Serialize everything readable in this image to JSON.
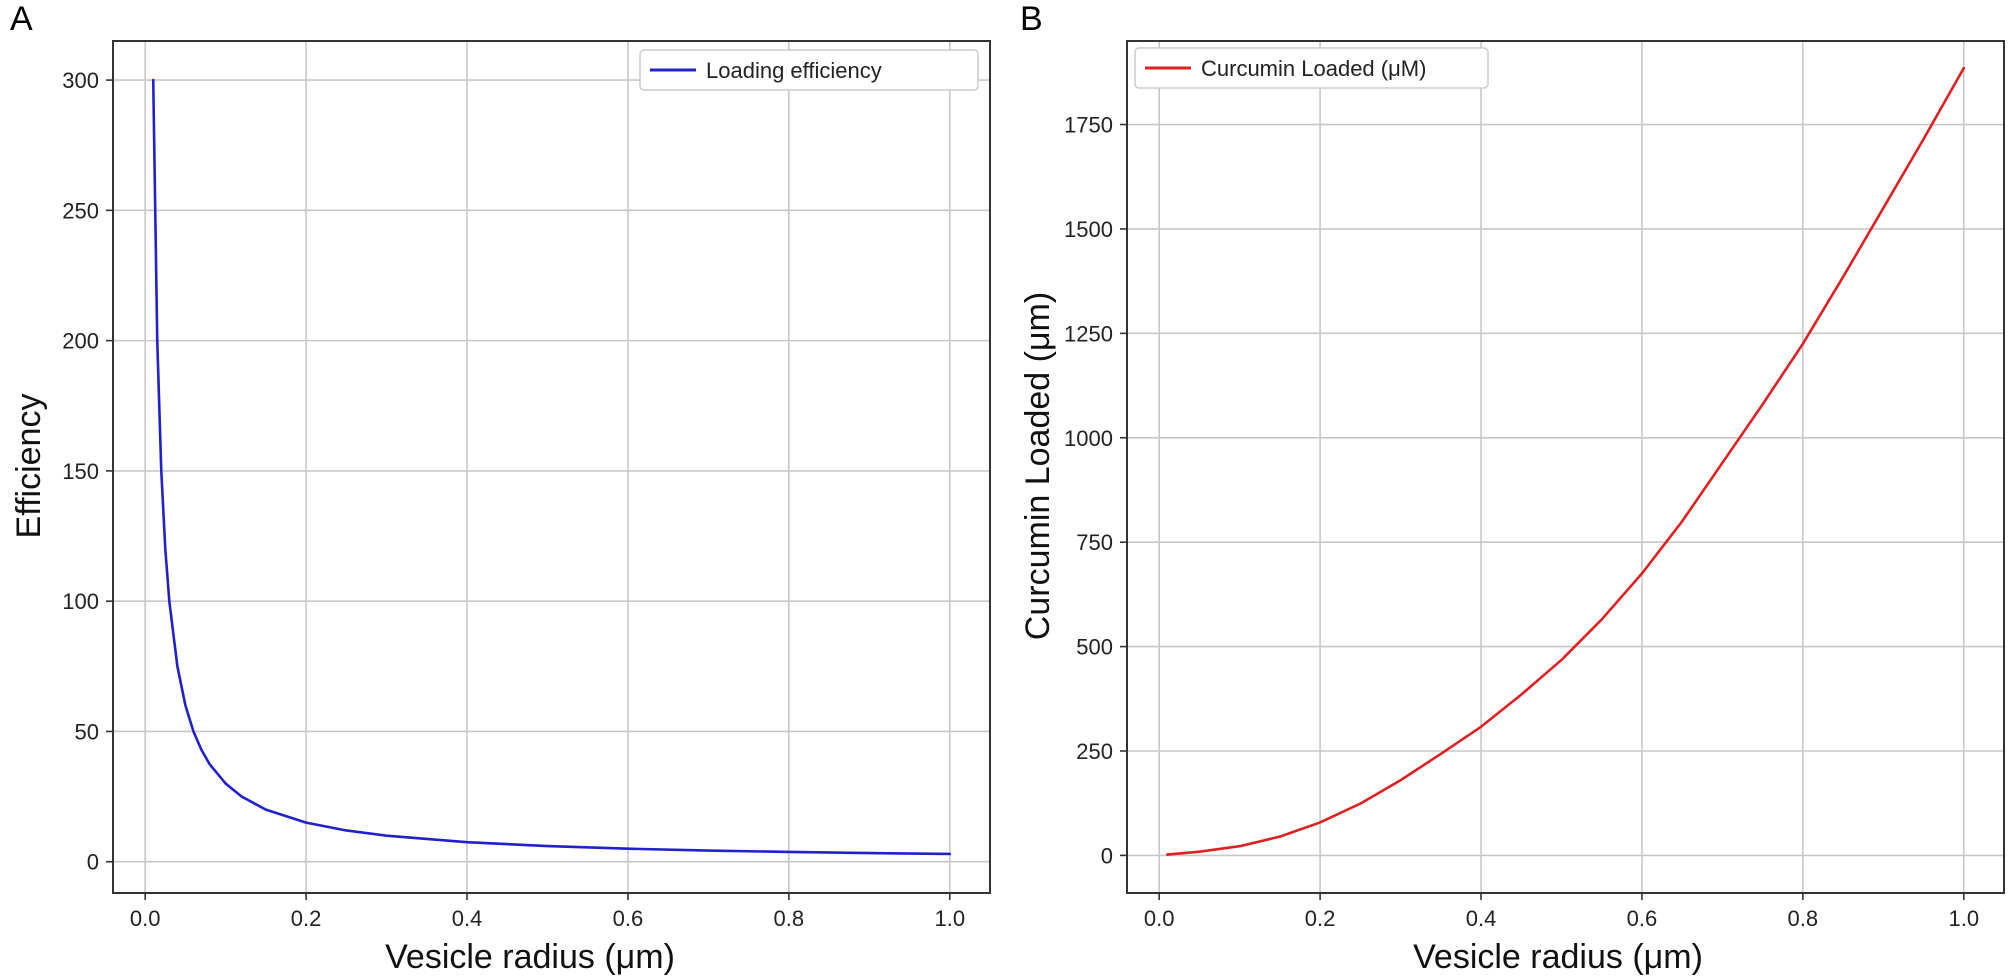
{
  "chart_data": [
    {
      "panel": "A",
      "type": "line",
      "title": "",
      "xlabel": "Vesicle radius (μm)",
      "ylabel": "Efficiency",
      "xlim": [
        -0.04,
        1.05
      ],
      "ylim": [
        -12,
        315
      ],
      "xticks": [
        0.0,
        0.2,
        0.4,
        0.6,
        0.8,
        1.0
      ],
      "xtick_labels": [
        "0.0",
        "0.2",
        "0.4",
        "0.6",
        "0.8",
        "1.0"
      ],
      "yticks": [
        0,
        50,
        100,
        150,
        200,
        250,
        300
      ],
      "ytick_labels": [
        "0",
        "50",
        "100",
        "150",
        "200",
        "250",
        "300"
      ],
      "grid": true,
      "legend_position": "top-right",
      "series": [
        {
          "name": "Loading efficiency",
          "color": "#2020cc",
          "x": [
            0.01,
            0.015,
            0.02,
            0.025,
            0.03,
            0.04,
            0.05,
            0.06,
            0.07,
            0.08,
            0.1,
            0.12,
            0.15,
            0.2,
            0.25,
            0.3,
            0.4,
            0.5,
            0.6,
            0.7,
            0.8,
            0.9,
            1.0
          ],
          "y": [
            300,
            200,
            150,
            120,
            100,
            75,
            60,
            50,
            42.9,
            37.5,
            30,
            25,
            20,
            15,
            12,
            10,
            7.5,
            6,
            5,
            4.3,
            3.75,
            3.33,
            3
          ]
        }
      ]
    },
    {
      "panel": "B",
      "type": "line",
      "title": "",
      "xlabel": "Vesicle radius (μm)",
      "ylabel": "Curcumin Loaded (μm)",
      "xlim": [
        -0.04,
        1.05
      ],
      "ylim": [
        -90,
        1950
      ],
      "xticks": [
        0.0,
        0.2,
        0.4,
        0.6,
        0.8,
        1.0
      ],
      "xtick_labels": [
        "0.0",
        "0.2",
        "0.4",
        "0.6",
        "0.8",
        "1.0"
      ],
      "yticks": [
        0,
        250,
        500,
        750,
        1000,
        1250,
        1500,
        1750
      ],
      "ytick_labels": [
        "0",
        "250",
        "500",
        "750",
        "1000",
        "1250",
        "1500",
        "1750"
      ],
      "grid": true,
      "legend_position": "top-left",
      "series": [
        {
          "name": "Curcumin Loaded (μM)",
          "color": "#e02020",
          "x": [
            0.01,
            0.05,
            0.1,
            0.15,
            0.2,
            0.25,
            0.3,
            0.35,
            0.4,
            0.45,
            0.5,
            0.55,
            0.6,
            0.65,
            0.7,
            0.75,
            0.8,
            0.85,
            0.9,
            0.95,
            1.0
          ],
          "y": [
            2,
            9,
            22,
            45,
            79,
            124,
            180,
            243,
            308,
            385,
            468,
            565,
            675,
            800,
            940,
            1080,
            1225,
            1385,
            1550,
            1715,
            1885
          ]
        }
      ]
    }
  ]
}
